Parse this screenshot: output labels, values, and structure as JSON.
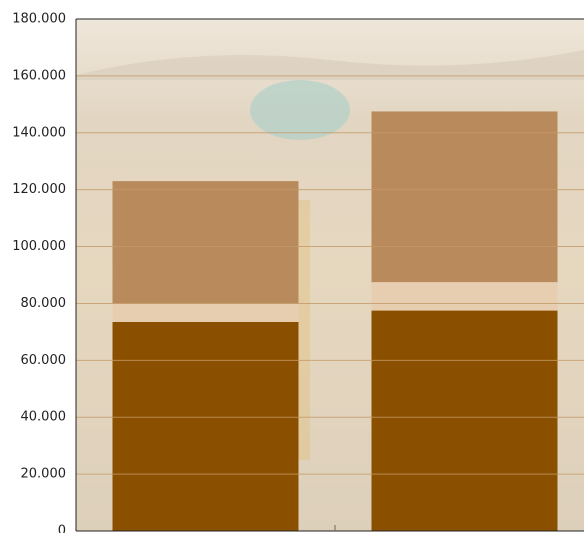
{
  "chart_data": {
    "type": "bar",
    "stacked": true,
    "categories": [
      null,
      null
    ],
    "series": [
      {
        "color": "#8a5000",
        "values": [
          73500,
          77500
        ]
      },
      {
        "color": "#e8ceb0",
        "values": [
          6500,
          10000
        ]
      },
      {
        "color": "#b98a5c",
        "values": [
          43000,
          60000
        ]
      }
    ],
    "ylim": [
      0,
      180000
    ],
    "yticks": [
      {
        "value": 0,
        "label": "0"
      },
      {
        "value": 20000,
        "label": "20.000"
      },
      {
        "value": 40000,
        "label": "40.000"
      },
      {
        "value": 60000,
        "label": "60.000"
      },
      {
        "value": 80000,
        "label": "80.000"
      },
      {
        "value": 100000,
        "label": "100.000"
      },
      {
        "value": 120000,
        "label": "120.000"
      },
      {
        "value": 140000,
        "label": "140.000"
      },
      {
        "value": 160000,
        "label": "160.000"
      },
      {
        "value": 180000,
        "label": "180.000"
      }
    ],
    "grid": true
  }
}
